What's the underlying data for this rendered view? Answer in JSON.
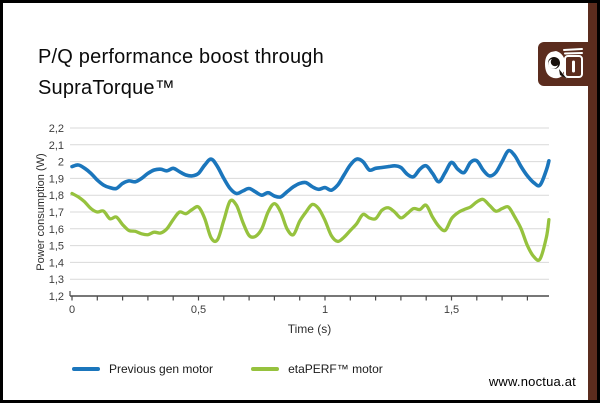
{
  "header": {
    "title_line1": "P/Q performance boost through",
    "title_line2": "SupraTorque™"
  },
  "brand": {
    "name": "noctua-logo",
    "brown": "#5B2C1E"
  },
  "footer": {
    "url": "www.noctua.at"
  },
  "chart_data": {
    "type": "line",
    "title": "P/Q performance boost through SupraTorque™",
    "xlabel": "Time (s)",
    "ylabel": "Power consumption (W)",
    "xlim": [
      0,
      1.89
    ],
    "ylim": [
      1.2,
      2.2
    ],
    "grid": "horizontal",
    "gridline_color": "#D9D9D9",
    "axis_color": "#4A4A4A",
    "tick_label_color": "#3D3D3D",
    "x_major_ticks": [
      {
        "v": 0,
        "label": "0"
      },
      {
        "v": 0.5,
        "label": "0,5"
      },
      {
        "v": 1,
        "label": "1"
      },
      {
        "v": 1.5,
        "label": "1,5"
      }
    ],
    "x_minor_tick_interval": 0.1,
    "y_ticks": [
      {
        "v": 1.2,
        "label": "1,2"
      },
      {
        "v": 1.3,
        "label": "1,3"
      },
      {
        "v": 1.4,
        "label": "1,4"
      },
      {
        "v": 1.5,
        "label": "1,5"
      },
      {
        "v": 1.6,
        "label": "1,6"
      },
      {
        "v": 1.7,
        "label": "1,7"
      },
      {
        "v": 1.8,
        "label": "1,8"
      },
      {
        "v": 1.9,
        "label": "1,9"
      },
      {
        "v": 2,
        "label": "2"
      },
      {
        "v": 2.1,
        "label": "2,1"
      },
      {
        "v": 2.2,
        "label": "2,2"
      }
    ],
    "legend_position": "bottom-left",
    "x": [
      0,
      0.025,
      0.05,
      0.075,
      0.1,
      0.125,
      0.15,
      0.175,
      0.2,
      0.225,
      0.25,
      0.275,
      0.3,
      0.325,
      0.35,
      0.375,
      0.4,
      0.425,
      0.45,
      0.475,
      0.5,
      0.525,
      0.55,
      0.575,
      0.6,
      0.625,
      0.65,
      0.675,
      0.7,
      0.725,
      0.75,
      0.775,
      0.8,
      0.825,
      0.85,
      0.875,
      0.9,
      0.925,
      0.95,
      0.975,
      1.0,
      1.025,
      1.05,
      1.075,
      1.1,
      1.125,
      1.15,
      1.175,
      1.2,
      1.225,
      1.25,
      1.275,
      1.3,
      1.325,
      1.35,
      1.375,
      1.4,
      1.425,
      1.45,
      1.475,
      1.5,
      1.525,
      1.55,
      1.575,
      1.6,
      1.625,
      1.65,
      1.675,
      1.7,
      1.725,
      1.75,
      1.775,
      1.8,
      1.825,
      1.85,
      1.875,
      1.885
    ],
    "series": [
      {
        "name": "Previous gen motor",
        "color": "#1B76BC",
        "stroke_width": 3.6,
        "values": [
          1.97,
          1.98,
          1.96,
          1.93,
          1.89,
          1.86,
          1.845,
          1.84,
          1.87,
          1.885,
          1.88,
          1.9,
          1.93,
          1.95,
          1.955,
          1.945,
          1.96,
          1.94,
          1.92,
          1.915,
          1.93,
          1.98,
          2.015,
          1.97,
          1.9,
          1.84,
          1.81,
          1.825,
          1.84,
          1.82,
          1.8,
          1.815,
          1.795,
          1.79,
          1.82,
          1.85,
          1.87,
          1.875,
          1.85,
          1.835,
          1.845,
          1.83,
          1.86,
          1.92,
          1.98,
          2.015,
          2.0,
          1.95,
          1.96,
          1.965,
          1.97,
          1.975,
          1.965,
          1.925,
          1.91,
          1.955,
          1.975,
          1.93,
          1.88,
          1.935,
          1.995,
          1.955,
          1.935,
          1.995,
          2.005,
          1.95,
          1.915,
          1.935,
          2.0,
          2.065,
          2.035,
          1.97,
          1.915,
          1.875,
          1.86,
          1.95,
          2.005
        ]
      },
      {
        "name": "etaPERF™ motor",
        "color": "#96C23E",
        "stroke_width": 3.3,
        "values": [
          1.81,
          1.79,
          1.76,
          1.72,
          1.7,
          1.705,
          1.66,
          1.67,
          1.625,
          1.59,
          1.585,
          1.57,
          1.565,
          1.58,
          1.575,
          1.6,
          1.655,
          1.7,
          1.69,
          1.715,
          1.73,
          1.66,
          1.545,
          1.535,
          1.65,
          1.765,
          1.74,
          1.64,
          1.56,
          1.555,
          1.6,
          1.7,
          1.75,
          1.7,
          1.6,
          1.565,
          1.645,
          1.7,
          1.745,
          1.72,
          1.65,
          1.56,
          1.525,
          1.55,
          1.59,
          1.63,
          1.685,
          1.665,
          1.66,
          1.71,
          1.725,
          1.7,
          1.665,
          1.69,
          1.72,
          1.715,
          1.74,
          1.67,
          1.615,
          1.59,
          1.66,
          1.695,
          1.715,
          1.73,
          1.76,
          1.775,
          1.74,
          1.705,
          1.72,
          1.73,
          1.67,
          1.6,
          1.5,
          1.435,
          1.42,
          1.55,
          1.655
        ]
      }
    ]
  }
}
